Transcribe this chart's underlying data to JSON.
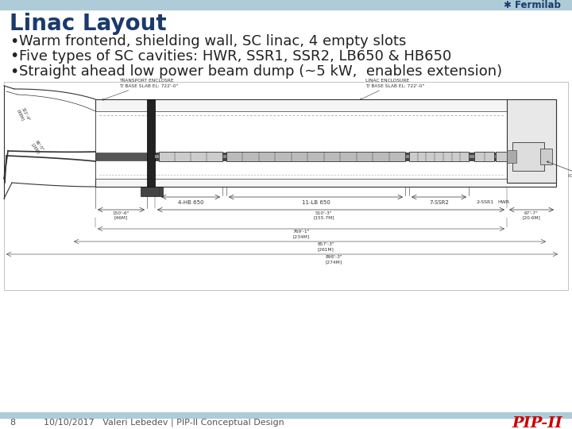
{
  "title": "Linac Layout",
  "title_color": "#1a3a6b",
  "title_fontsize": 20,
  "bg_color": "#ffffff",
  "header_bar_color": "#aeccd8",
  "footer_bar_color": "#aeccd8",
  "bullet_points": [
    "Warm frontend, shielding wall, SC linac, 4 empty slots",
    "Five types of SC cavities: HWR, SSR1, SSR2, LB650 & HB650",
    "Straight ahead low power beam dump (~5 kW,  enables extension)"
  ],
  "bullet_color": "#222222",
  "bullet_fontsize": 13,
  "fermilab_text": "Fermilab",
  "fermilab_color": "#1a3a6b",
  "footer_page": "8",
  "footer_date": "10/10/2017",
  "footer_author": "Valeri Lebedev | PIP-II Conceptual Design",
  "footer_color": "#555555",
  "footer_fontsize": 8,
  "pipii_color": "#cc0000",
  "line_color": "#333333",
  "dim_color": "#333333",
  "label_fontsize": 4.2,
  "section_label_fontsize": 5.0
}
